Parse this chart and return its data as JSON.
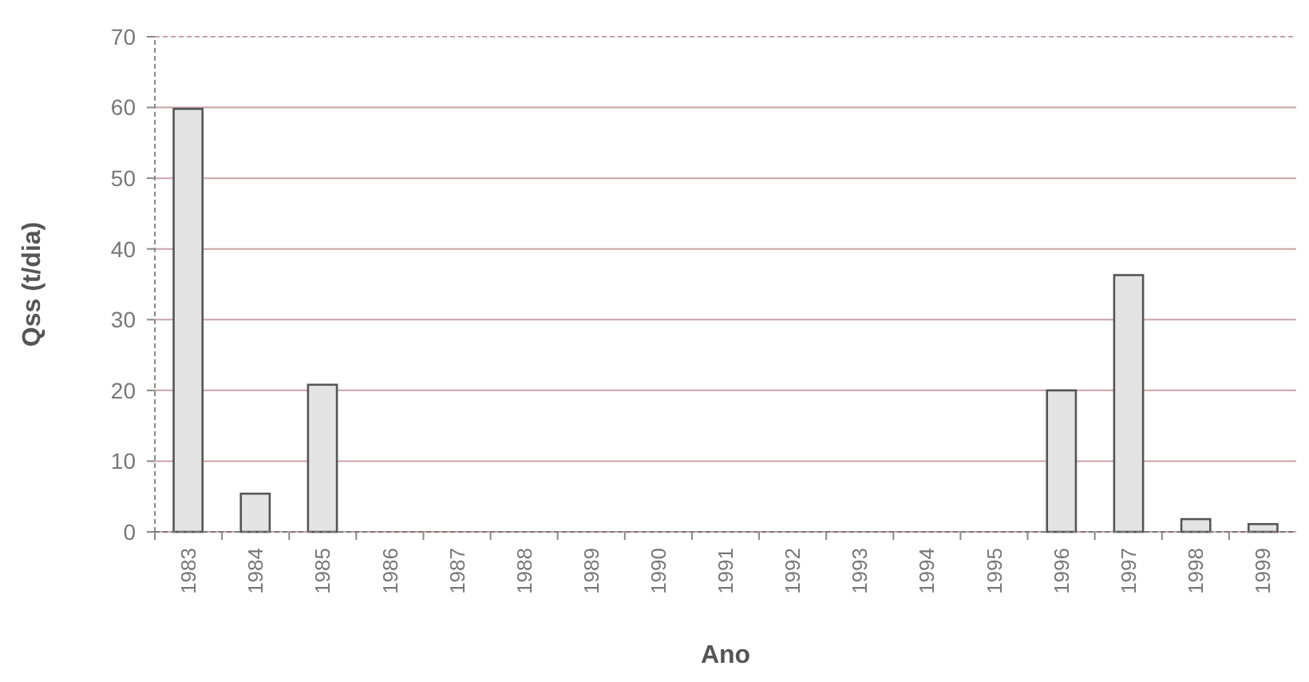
{
  "chart_data": {
    "type": "bar",
    "xlabel": "Ano",
    "ylabel": "Qss (t/dia)",
    "categories": [
      "1983",
      "1984",
      "1985",
      "1986",
      "1987",
      "1988",
      "1989",
      "1990",
      "1991",
      "1992",
      "1993",
      "1994",
      "1995",
      "1996",
      "1997",
      "1998",
      "1999"
    ],
    "values": [
      59.8,
      5.4,
      20.8,
      0,
      0,
      0,
      0,
      0,
      0,
      0,
      0,
      0,
      0,
      20,
      36.3,
      1.8,
      1.1
    ],
    "color": "#e4e4e4",
    "ylim": [
      0,
      70
    ],
    "yticks": [
      0,
      10,
      20,
      30,
      40,
      50,
      60,
      70
    ],
    "grid": "y"
  }
}
